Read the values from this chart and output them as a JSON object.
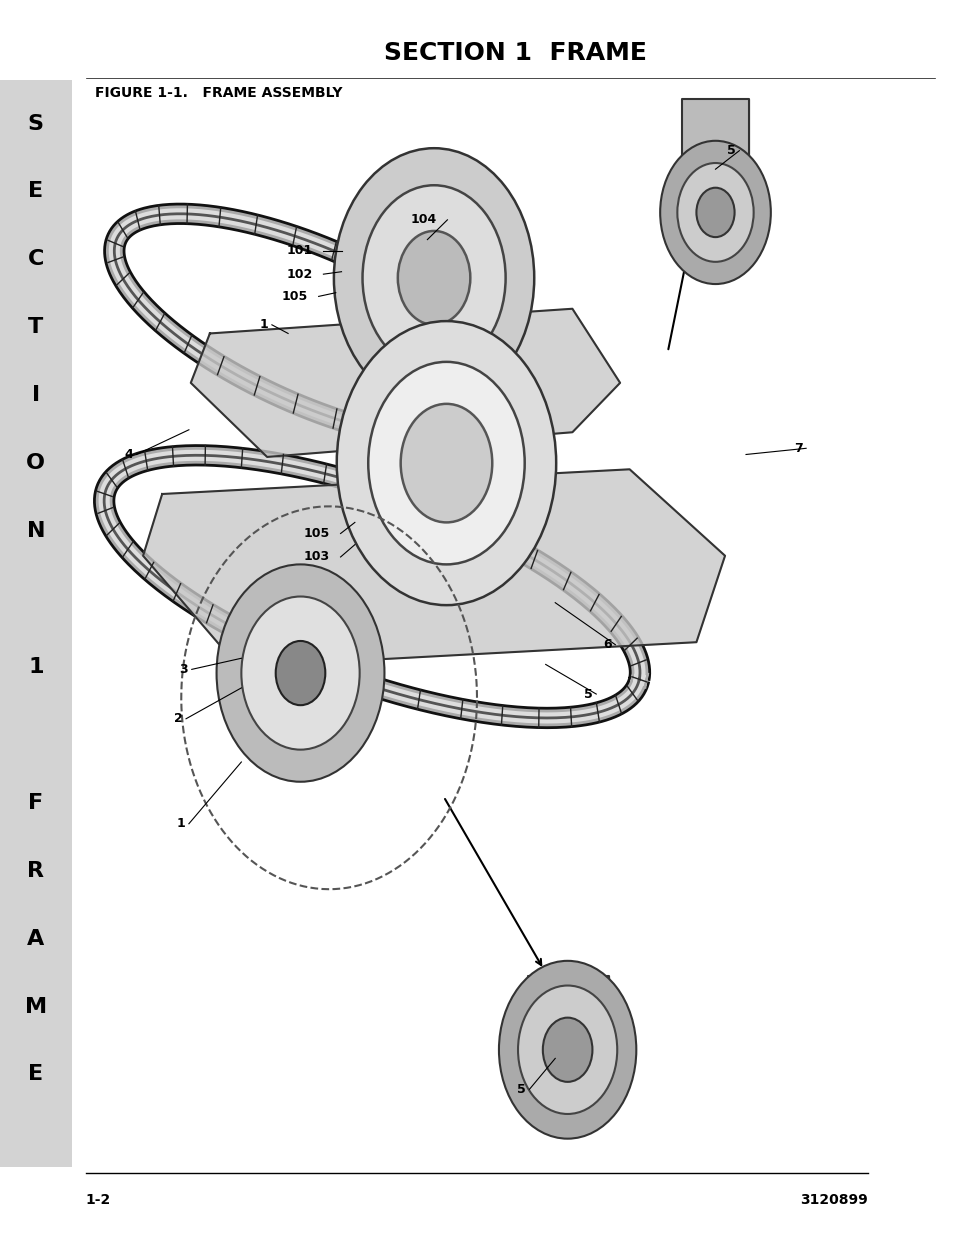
{
  "title": "SECTION 1  FRAME",
  "figure_label": "FIGURE 1-1.   FRAME ASSEMBLY",
  "page_num": "1-2",
  "part_num": "3120899",
  "sidebar_text": [
    "S",
    "E",
    "C",
    "T",
    "I",
    "O",
    "N",
    "",
    "1",
    "",
    "F",
    "R",
    "A",
    "M",
    "E"
  ],
  "sidebar_bg": "#d3d3d3",
  "bg_color": "#ffffff",
  "title_fontsize": 18,
  "label_fontsize": 9,
  "sidebar_fontsize": 16
}
